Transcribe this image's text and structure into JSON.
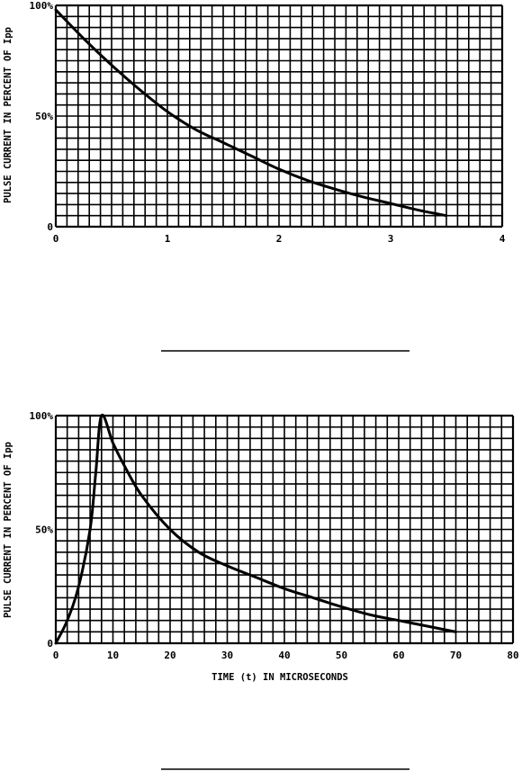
{
  "chart_data": [
    {
      "type": "line",
      "title": "",
      "ylabel": "PULSE CURRENT IN PERCENT OF Ipp",
      "xlabel": "",
      "xlim": [
        0,
        4
      ],
      "ylim": [
        0,
        100
      ],
      "x_ticks": [
        "0",
        "1",
        "2",
        "3",
        "4"
      ],
      "y_ticks": [
        "0",
        "50%",
        "100%"
      ],
      "grid": true,
      "series": [
        {
          "x": [
            0,
            0.25,
            0.5,
            0.75,
            1.0,
            1.25,
            1.5,
            1.75,
            2.0,
            2.25,
            2.5,
            2.75,
            3.0,
            3.25,
            3.5
          ],
          "y": [
            98,
            85,
            73,
            62,
            52,
            44,
            38,
            32,
            26,
            21,
            17,
            13.5,
            10.5,
            7.5,
            5
          ]
        }
      ]
    },
    {
      "type": "line",
      "title": "",
      "ylabel": "PULSE CURRENT IN PERCENT OF Ipp",
      "xlabel": "TIME (t) IN MICROSECONDS",
      "xlim": [
        0,
        80
      ],
      "ylim": [
        0,
        100
      ],
      "x_ticks": [
        "0",
        "10",
        "20",
        "30",
        "40",
        "50",
        "60",
        "70",
        "80"
      ],
      "y_ticks": [
        "0",
        "50%",
        "100%"
      ],
      "grid": true,
      "series": [
        {
          "x": [
            0,
            2,
            4,
            6,
            7,
            8,
            10,
            12,
            15,
            20,
            25,
            30,
            35,
            40,
            45,
            50,
            55,
            60,
            65,
            70
          ],
          "y": [
            0,
            10,
            25,
            50,
            75,
            100,
            88,
            78,
            65,
            50,
            40,
            34,
            29,
            24,
            20,
            16,
            12.5,
            10,
            7.5,
            5
          ]
        }
      ]
    }
  ]
}
